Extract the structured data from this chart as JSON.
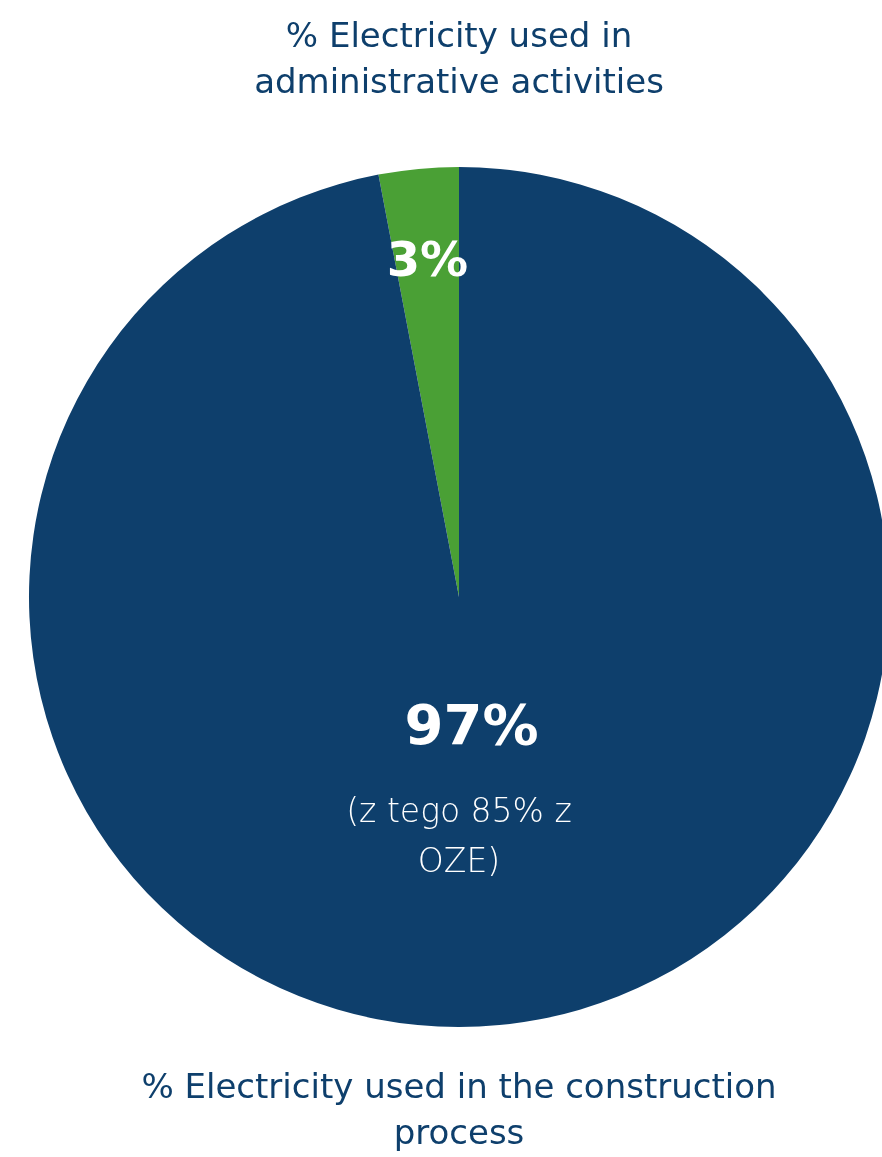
{
  "chart_data": {
    "type": "pie",
    "categories": [
      "% Electricity used in administrative activities",
      "% Electricity used in the construction process"
    ],
    "values": [
      3,
      97
    ],
    "colors": [
      "#4aa035",
      "#0e3f6c"
    ],
    "value_labels": [
      "3%",
      "97%"
    ],
    "annotations": [
      "(z tego 85% z OZE)"
    ],
    "legend": false
  }
}
